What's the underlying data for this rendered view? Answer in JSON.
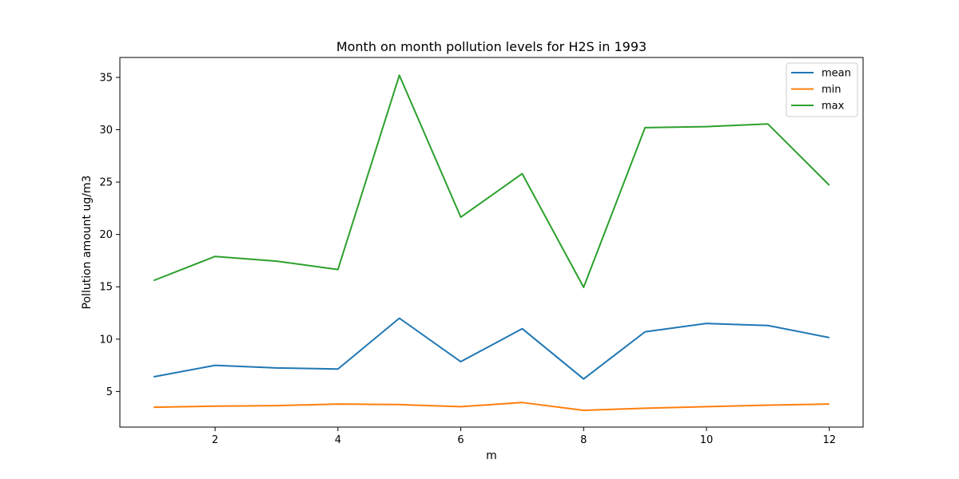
{
  "chart_data": {
    "type": "line",
    "title": "Month on month pollution levels for H2S in 1993",
    "xlabel": "m",
    "ylabel": "Pollution amount ug/m3",
    "x": [
      1,
      2,
      3,
      4,
      5,
      6,
      7,
      8,
      9,
      10,
      11,
      12
    ],
    "xlim": [
      0.45,
      12.55
    ],
    "ylim": [
      1.6,
      36.9
    ],
    "xticks": [
      2,
      4,
      6,
      8,
      10,
      12
    ],
    "yticks": [
      5,
      10,
      15,
      20,
      25,
      30,
      35
    ],
    "grid": false,
    "legend_position": "top-right",
    "series": [
      {
        "name": "mean",
        "color": "#1f77b4",
        "values": [
          6.4,
          7.5,
          7.25,
          7.15,
          12.0,
          7.85,
          11.0,
          6.2,
          10.7,
          11.5,
          11.3,
          10.15
        ]
      },
      {
        "name": "min",
        "color": "#ff7f0e",
        "values": [
          3.5,
          3.6,
          3.65,
          3.8,
          3.75,
          3.55,
          3.95,
          3.2,
          3.4,
          3.55,
          3.7,
          3.8
        ]
      },
      {
        "name": "max",
        "color": "#2ca02c",
        "values": [
          15.6,
          17.9,
          17.45,
          16.65,
          35.2,
          21.65,
          25.8,
          14.95,
          30.2,
          30.3,
          30.55,
          24.7
        ]
      }
    ]
  }
}
